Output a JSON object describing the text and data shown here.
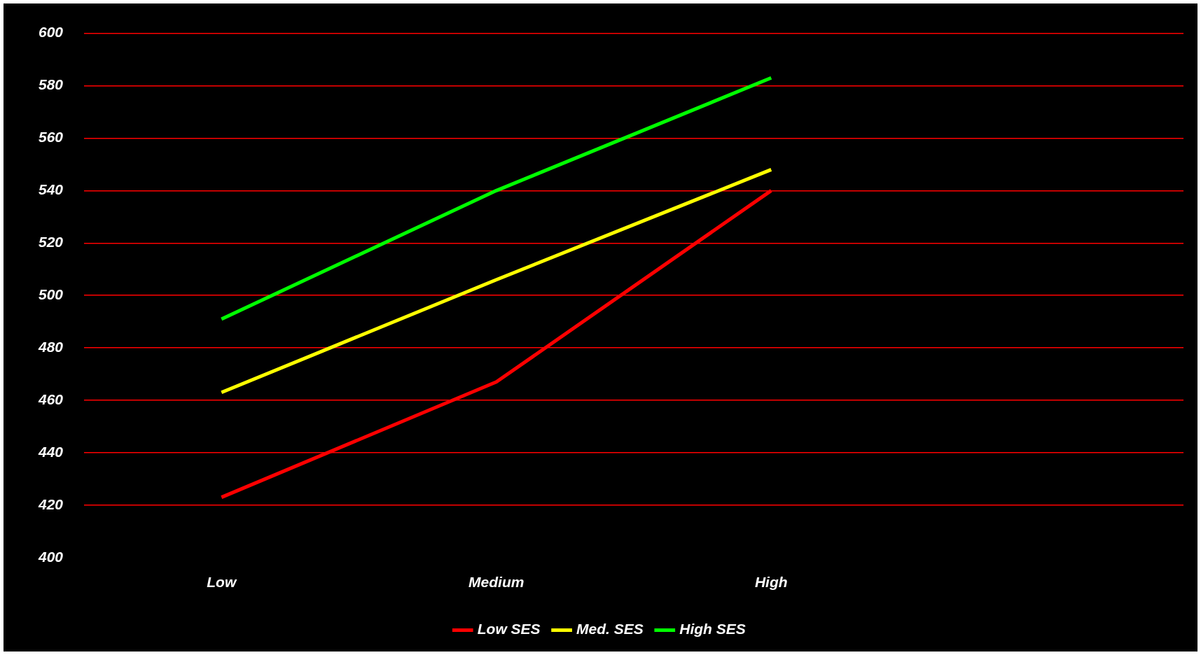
{
  "chart_data": {
    "type": "line",
    "categories": [
      "Low",
      "Medium",
      "High",
      null
    ],
    "series": [
      {
        "name": "Low SES",
        "color": "#ff0000",
        "values": [
          423,
          467,
          540,
          null
        ]
      },
      {
        "name": "Med. SES",
        "color": "#ffff00",
        "values": [
          463,
          506,
          548,
          null
        ]
      },
      {
        "name": "High SES",
        "color": "#00ff00",
        "values": [
          491,
          540,
          583,
          null
        ]
      }
    ],
    "ylim": [
      400,
      600
    ],
    "yticks": [
      400,
      420,
      440,
      460,
      480,
      500,
      520,
      540,
      560,
      580,
      600
    ],
    "grid": "y",
    "legend": "bottom",
    "marker": "none",
    "line_style": "solid"
  }
}
